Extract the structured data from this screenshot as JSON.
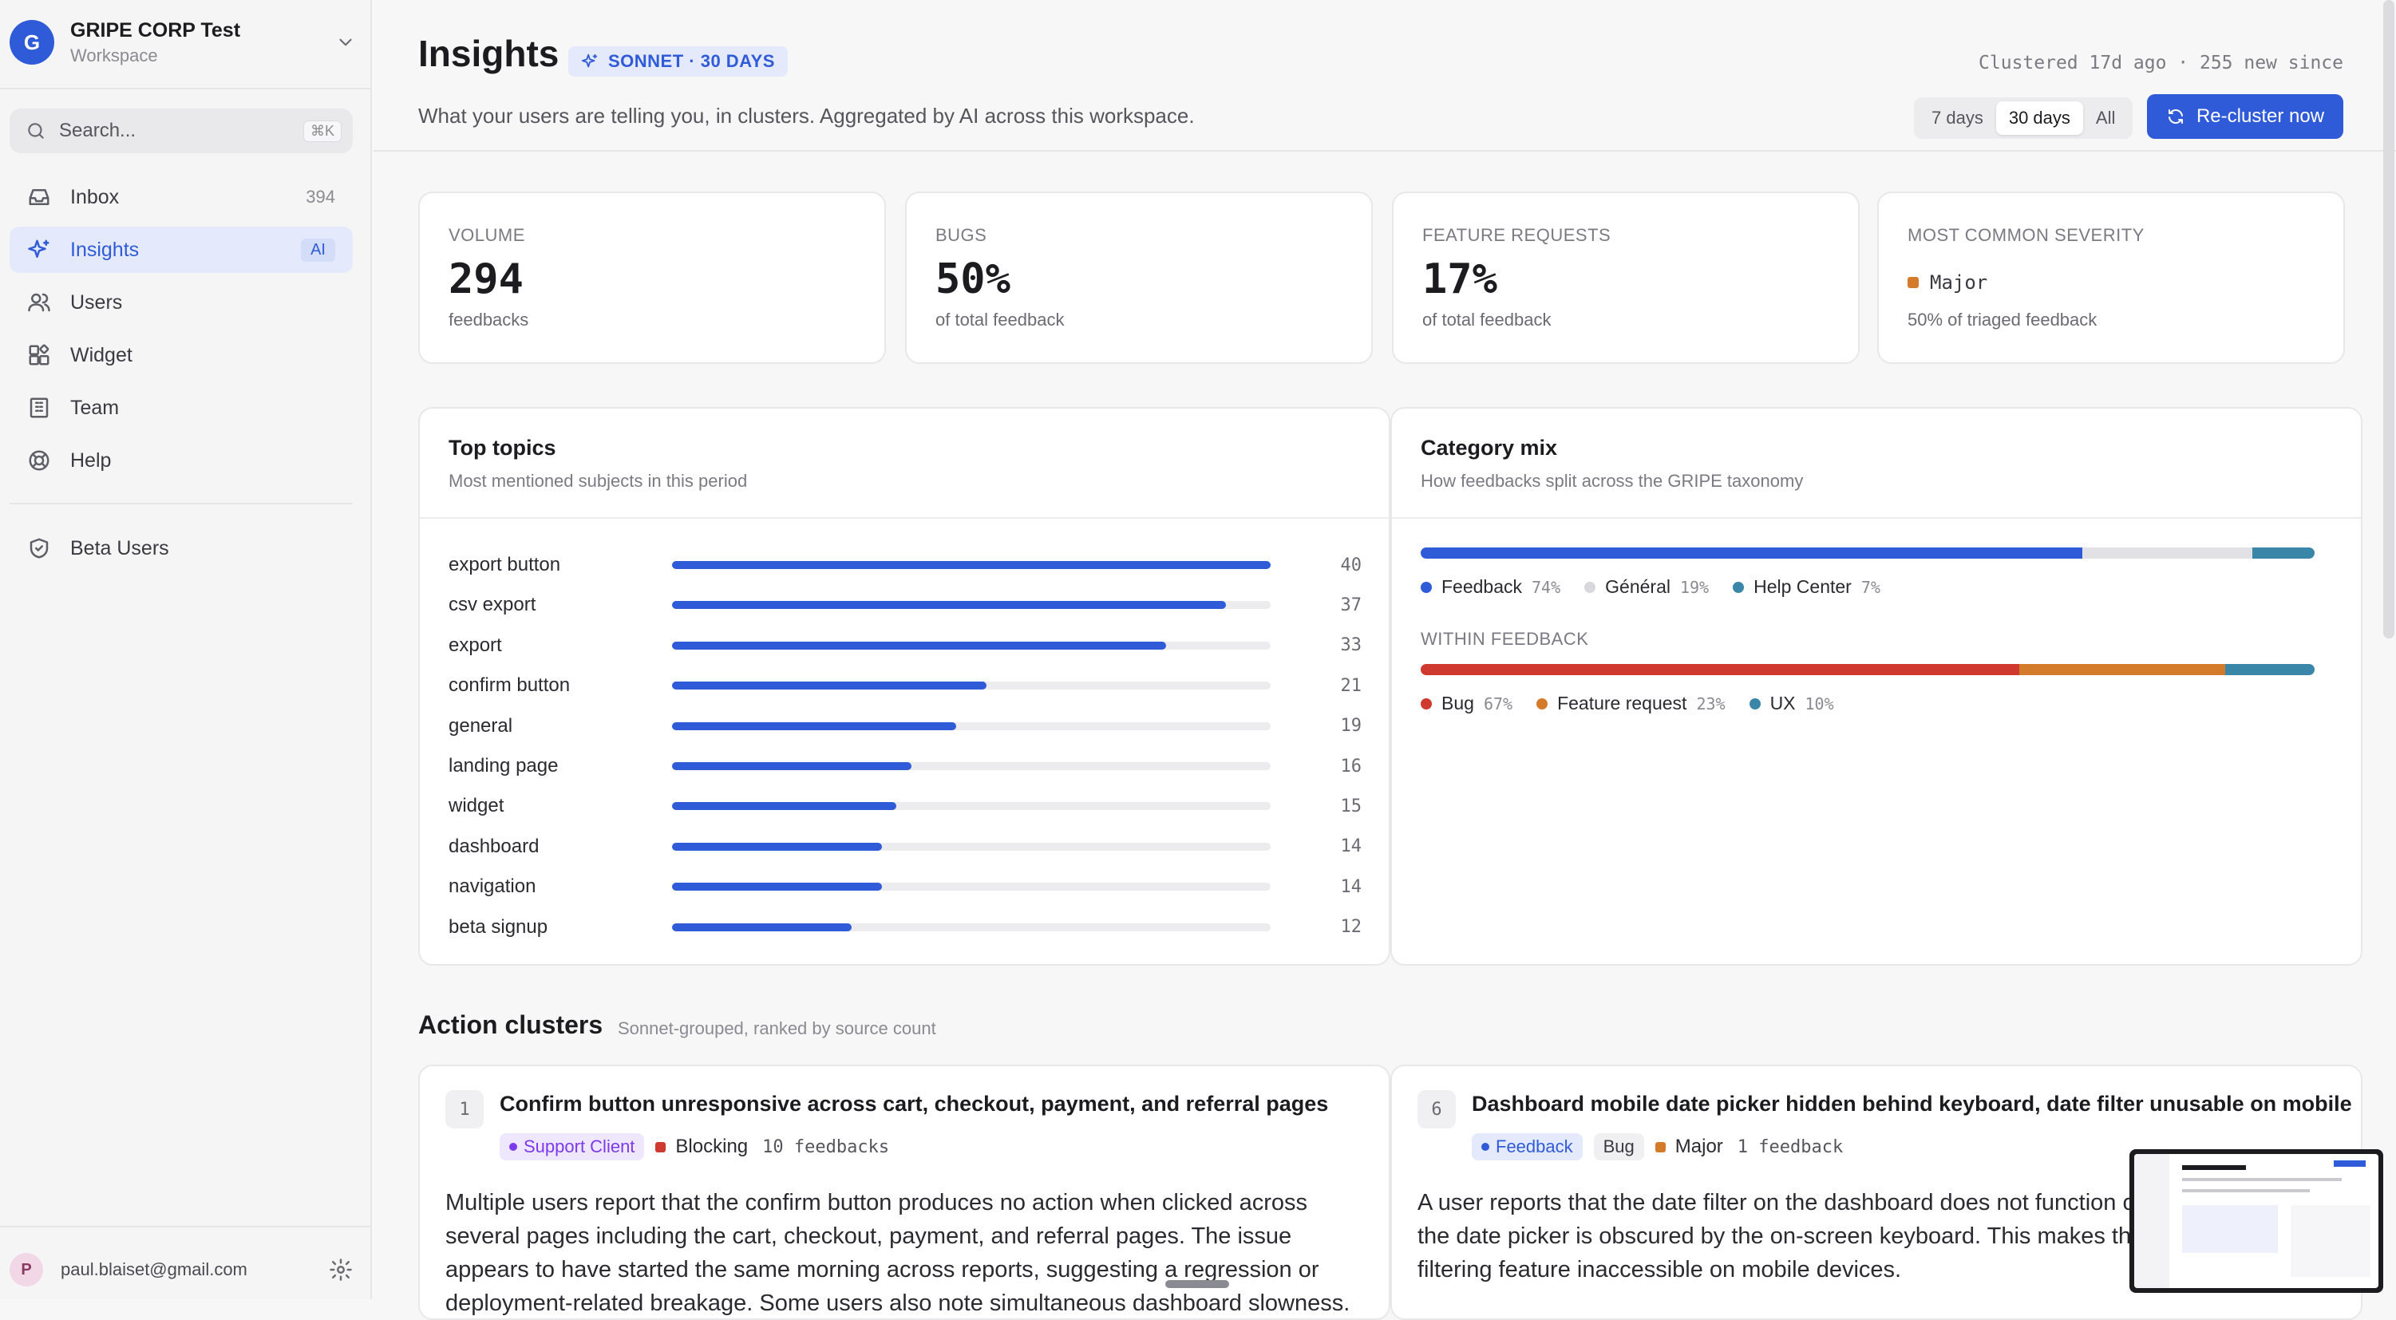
{
  "workspace": {
    "initial": "G",
    "name": "GRIPE CORP Test",
    "subtitle": "Workspace"
  },
  "search": {
    "placeholder": "Search...",
    "shortcut": "⌘K"
  },
  "nav": [
    {
      "label": "Inbox",
      "count": "394",
      "icon": "inbox-icon"
    },
    {
      "label": "Insights",
      "badge": "AI",
      "icon": "sparkles-icon",
      "active": true
    },
    {
      "label": "Users",
      "icon": "users-icon"
    },
    {
      "label": "Widget",
      "icon": "widget-icon"
    },
    {
      "label": "Team",
      "icon": "building-icon"
    },
    {
      "label": "Help",
      "icon": "lifebuoy-icon"
    }
  ],
  "nav_secondary": [
    {
      "label": "Beta Users",
      "icon": "shield-icon"
    }
  ],
  "user": {
    "initial": "P",
    "email": "paul.blaiset@gmail.com"
  },
  "header": {
    "title": "Insights",
    "model_badge": "SONNET · 30 DAYS",
    "subtitle": "What your users are telling you, in clusters. Aggregated by AI across this workspace.",
    "clustered": "Clustered 17d ago · 255 new since",
    "ranges": [
      "7 days",
      "30 days",
      "All"
    ],
    "selected_range": "30 days",
    "recluster_label": "Re-cluster now"
  },
  "stats": [
    {
      "label": "VOLUME",
      "value": "294",
      "desc": "feedbacks"
    },
    {
      "label": "BUGS",
      "value": "50%",
      "desc": "of total feedback"
    },
    {
      "label": "FEATURE REQUESTS",
      "value": "17%",
      "desc": "of total feedback"
    },
    {
      "label": "MOST COMMON SEVERITY",
      "value": "Major",
      "desc": "50% of triaged feedback"
    }
  ],
  "top_topics": {
    "title": "Top topics",
    "subtitle": "Most mentioned subjects in this period",
    "max": 40,
    "items": [
      {
        "label": "export button",
        "count": 40
      },
      {
        "label": "csv export",
        "count": 37
      },
      {
        "label": "export",
        "count": 33
      },
      {
        "label": "confirm button",
        "count": 21
      },
      {
        "label": "general",
        "count": 19
      },
      {
        "label": "landing page",
        "count": 16
      },
      {
        "label": "widget",
        "count": 15
      },
      {
        "label": "dashboard",
        "count": 14
      },
      {
        "label": "navigation",
        "count": 14
      },
      {
        "label": "beta signup",
        "count": 12
      }
    ]
  },
  "category_mix": {
    "title": "Category mix",
    "subtitle": "How feedbacks split across the GRIPE taxonomy",
    "overall": [
      {
        "label": "Feedback",
        "pct": "74%",
        "value": 74,
        "color": "#2f5bd8"
      },
      {
        "label": "Général",
        "pct": "19%",
        "value": 19,
        "color": "#e2e2e6"
      },
      {
        "label": "Help Center",
        "pct": "7%",
        "value": 7,
        "color": "#3a86a8"
      }
    ],
    "within_label": "WITHIN FEEDBACK",
    "within": [
      {
        "label": "Bug",
        "pct": "67%",
        "value": 67,
        "color": "#d0392f"
      },
      {
        "label": "Feature request",
        "pct": "23%",
        "value": 23,
        "color": "#d37a2b"
      },
      {
        "label": "UX",
        "pct": "10%",
        "value": 10,
        "color": "#3a86a8"
      }
    ]
  },
  "action_clusters": {
    "title": "Action clusters",
    "subtitle": "Sonnet-grouped, ranked by source count",
    "items": [
      {
        "rank": "1",
        "title": "Confirm button unresponsive across cart, checkout, payment, and referral pages",
        "tag": "Support Client",
        "tag_color": "#7c3aed",
        "tag_bg": "#efe7fd",
        "severity": "Blocking",
        "severity_color": "#d0392f",
        "count": "10 feedbacks",
        "body": "Multiple users report that the confirm button produces no action when clicked across several pages including the cart, checkout, payment, and referral pages. The issue appears to have started the same morning across reports, suggesting a regression or deployment-related breakage. Some users also note simultaneous dashboard slowness."
      },
      {
        "rank": "6",
        "title": "Dashboard mobile date picker hidden behind keyboard, date filter unusable on mobile",
        "tag": "Feedback",
        "tag_color": "#2f5bd8",
        "tag_bg": "#e4eafb",
        "category": "Bug",
        "severity": "Major",
        "severity_color": "#d37a2b",
        "count": "1 feedback",
        "body": "A user reports that the date filter on the dashboard does not function correctly because the date picker is obscured by the on-screen keyboard. This makes the date-based filtering feature inaccessible on mobile devices."
      }
    ]
  }
}
